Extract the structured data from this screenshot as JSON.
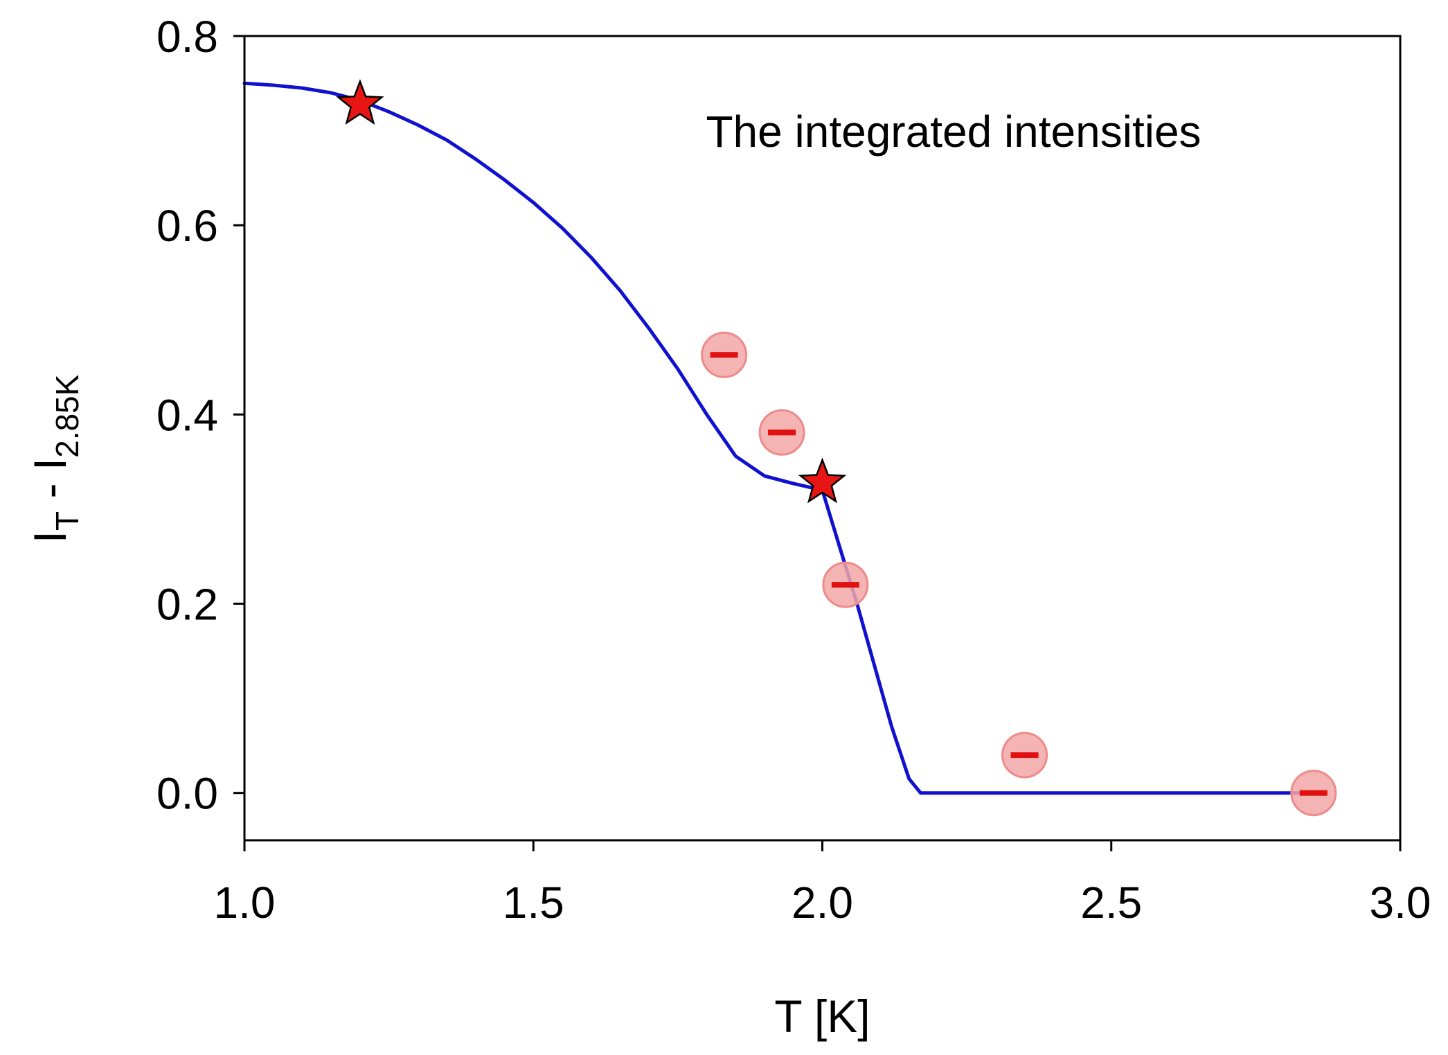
{
  "chart_data": {
    "type": "scatter",
    "title": "",
    "annotation": "The integrated intensities",
    "xlabel": "T [K]",
    "ylabel": {
      "main1": "I",
      "sub1": "T",
      "main2": " - I",
      "sub2": "2.85K"
    },
    "xlim": [
      1.0,
      3.0
    ],
    "ylim": [
      -0.05,
      0.8
    ],
    "xticks": [
      "1.0",
      "1.5",
      "2.0",
      "2.5",
      "3.0"
    ],
    "yticks": [
      "0.0",
      "0.2",
      "0.4",
      "0.6",
      "0.8"
    ],
    "grid": false,
    "series": [
      {
        "name": "circles",
        "marker": "circle",
        "x": [
          1.83,
          1.93,
          2.04,
          2.35,
          2.85
        ],
        "y": [
          0.463,
          0.381,
          0.22,
          0.04,
          0.0
        ],
        "error": [
          0.003,
          0.003,
          0.003,
          0.002,
          0.002
        ],
        "fill_color": "#f2a7a7",
        "edge_color": "#ee8a8a",
        "error_color": "#e01010"
      },
      {
        "name": "stars",
        "marker": "star",
        "x": [
          1.2,
          2.0
        ],
        "y": [
          0.73,
          0.33
        ],
        "fill_color": "#e81515",
        "edge_color": "#000000"
      },
      {
        "name": "fit",
        "marker": "line",
        "color": "#1010d0",
        "x": [
          1.0,
          1.05,
          1.1,
          1.15,
          1.2,
          1.25,
          1.3,
          1.35,
          1.4,
          1.45,
          1.5,
          1.55,
          1.6,
          1.65,
          1.7,
          1.75,
          1.8,
          1.85,
          1.9,
          1.95,
          2.0,
          2.03,
          2.06,
          2.09,
          2.12,
          2.15,
          2.17,
          2.5,
          2.86
        ],
        "y": [
          0.75,
          0.748,
          0.745,
          0.74,
          0.732,
          0.72,
          0.706,
          0.69,
          0.67,
          0.648,
          0.624,
          0.597,
          0.566,
          0.531,
          0.491,
          0.448,
          0.4,
          0.356,
          0.335,
          0.327,
          0.32,
          0.26,
          0.2,
          0.135,
          0.07,
          0.015,
          0.0,
          0.0,
          0.0
        ]
      }
    ]
  }
}
